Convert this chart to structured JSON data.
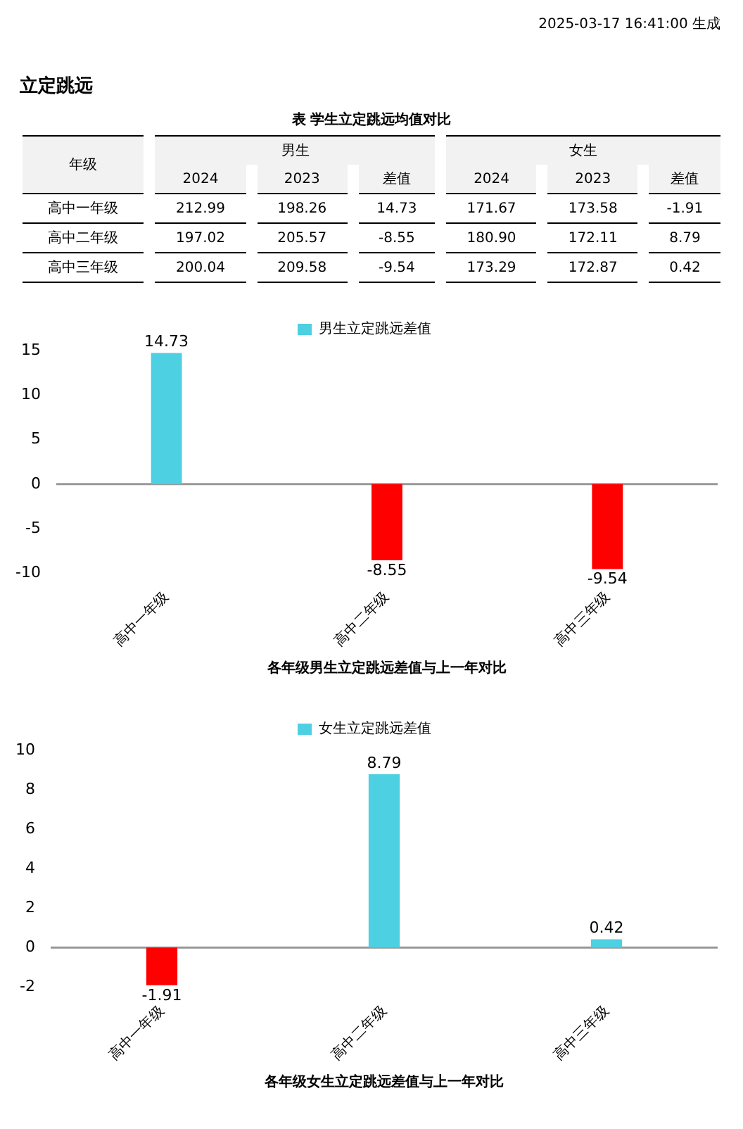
{
  "chart_data": [
    {
      "type": "heatmap",
      "title": "表 学生立定跳远均值对比",
      "ylabel": "年级",
      "annotations": [
        "2025-03-17 16:41:00 生成",
        "立定跳远",
        "男生",
        "女生"
      ],
      "categories": [
        "2024",
        "2023",
        "差值",
        "2024",
        "2023",
        "差值"
      ],
      "y_categories": [
        "高中一年级",
        "高中二年级",
        "高中三年级"
      ],
      "data_labels": true,
      "cells": [
        [
          212.99,
          198.26,
          14.73,
          171.67,
          173.58,
          -1.91
        ],
        [
          197.02,
          205.57,
          -8.55,
          180.9,
          172.11,
          8.79
        ],
        [
          200.04,
          209.58,
          -9.54,
          173.29,
          172.87,
          0.42
        ]
      ],
      "cell_labels": [
        [
          "212.99",
          "198.26",
          "14.73",
          "171.67",
          "173.58",
          "-1.91"
        ],
        [
          "197.02",
          "205.57",
          "-8.55",
          "180.90",
          "172.11",
          "8.79"
        ],
        [
          "200.04",
          "209.58",
          "-9.54",
          "173.29",
          "172.87",
          "0.42"
        ]
      ]
    },
    {
      "type": "bar",
      "xlabel": "各年级男生立定跳远差值与上一年对比",
      "categories": [
        "高中一年级",
        "高中二年级",
        "高中三年级"
      ],
      "series": [
        {
          "name": "男生立定跳远差值",
          "color": "#4dd0e1",
          "colors": [
            "#4dd0e1",
            "#ff0000",
            "#ff0000"
          ],
          "values": [
            14.73,
            -8.55,
            -9.54
          ]
        }
      ],
      "ylim": [
        -10,
        15
      ],
      "yticks": [
        -10,
        -5,
        0,
        5,
        10,
        15
      ],
      "ref_lines": [
        {
          "axis": "y",
          "value": 0
        }
      ],
      "legend": "top",
      "data_labels": true
    },
    {
      "type": "bar",
      "xlabel": "各年级女生立定跳远差值与上一年对比",
      "categories": [
        "高中一年级",
        "高中二年级",
        "高中三年级"
      ],
      "series": [
        {
          "name": "女生立定跳远差值",
          "color": "#4dd0e1",
          "colors": [
            "#ff0000",
            "#4dd0e1",
            "#4dd0e1"
          ],
          "values": [
            -1.91,
            8.79,
            0.42
          ]
        }
      ],
      "ylim": [
        -2,
        10
      ],
      "yticks": [
        -2,
        0,
        2,
        4,
        6,
        8,
        10
      ],
      "ref_lines": [
        {
          "axis": "y",
          "value": 0
        }
      ],
      "legend": "top",
      "data_labels": true
    }
  ]
}
